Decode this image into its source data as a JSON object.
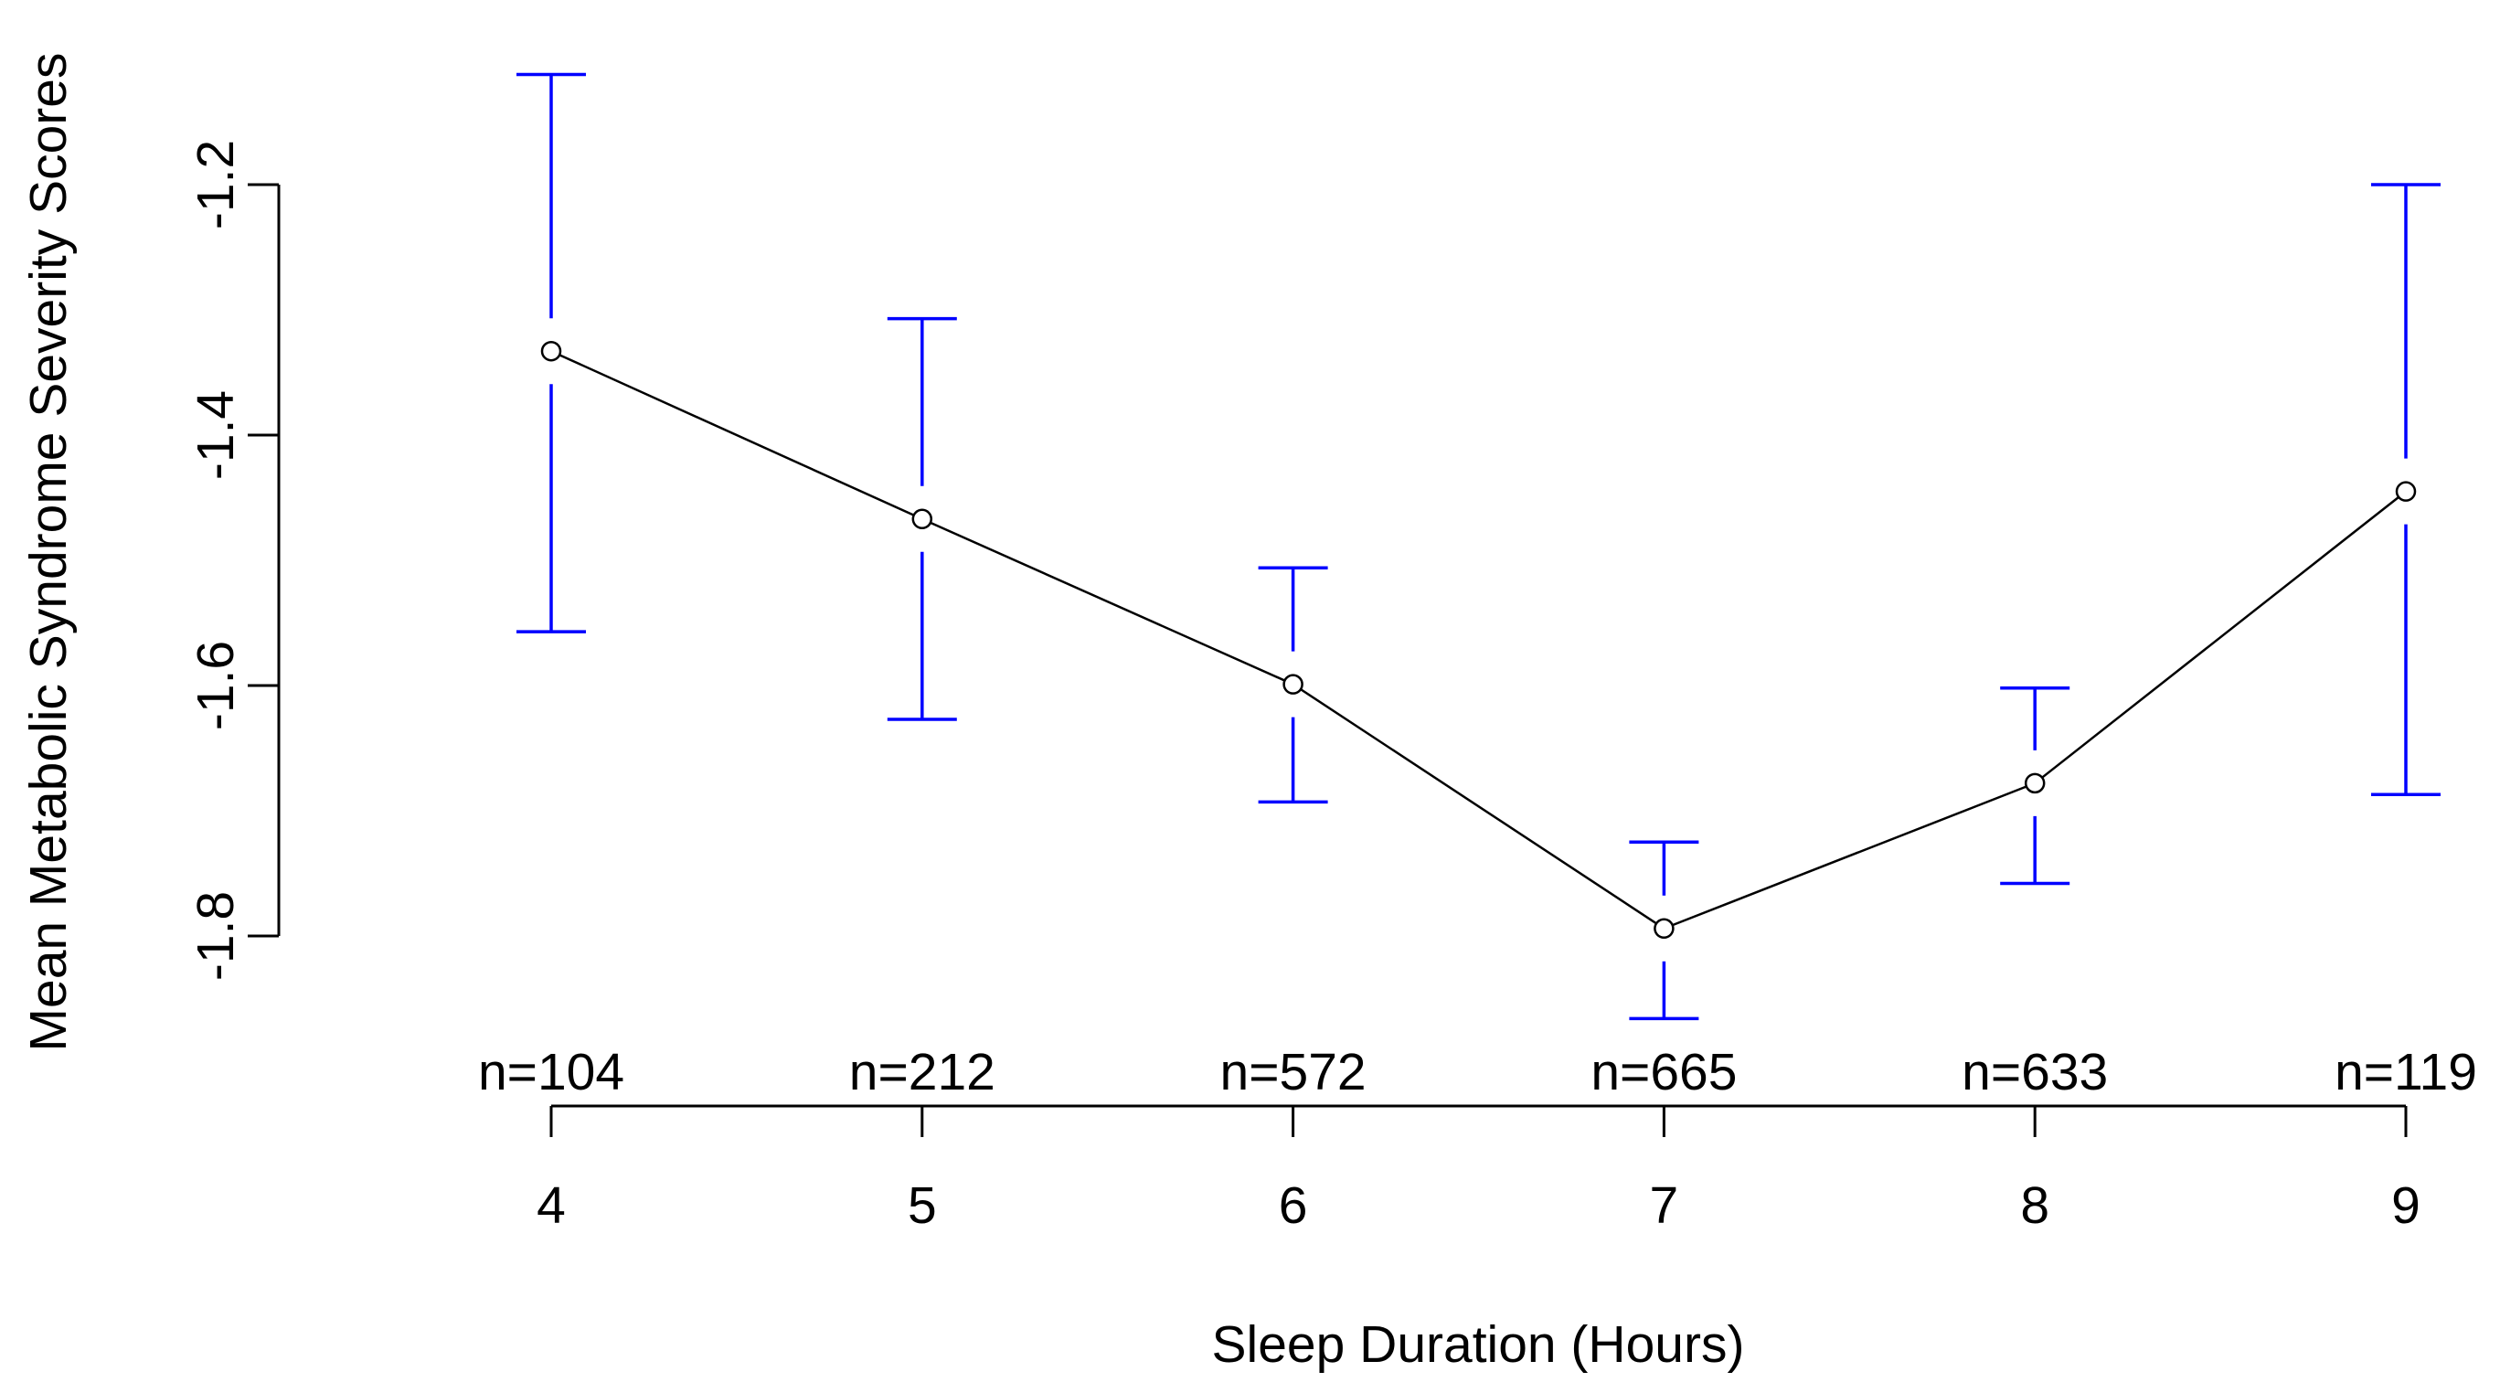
{
  "chart_data": {
    "type": "line",
    "title": "",
    "xlabel": "Sleep Duration (Hours)",
    "ylabel": "Mean Metabolic Syndrome Severity Scores",
    "x": [
      4,
      5,
      6,
      7,
      8,
      9
    ],
    "x_tick_labels": [
      "4",
      "5",
      "6",
      "7",
      "8",
      "9"
    ],
    "n_labels": [
      "n=104",
      "n=212",
      "n=572",
      "n=665",
      "n=633",
      "n=119"
    ],
    "series": [
      {
        "values": [
          -1.333,
          -1.467,
          -1.599,
          -1.794,
          -1.678,
          -1.445
        ],
        "ci_upper": [
          -1.112,
          -1.307,
          -1.506,
          -1.725,
          -1.602,
          -1.2
        ],
        "ci_lower": [
          -1.557,
          -1.627,
          -1.693,
          -1.866,
          -1.758,
          -1.687
        ]
      }
    ],
    "y_ticks": [
      -1.8,
      -1.6,
      -1.4,
      -1.2
    ],
    "y_tick_labels": [
      "-1.8",
      "-1.6",
      "-1.4",
      "-1.2"
    ],
    "ylim": [
      -1.8,
      -1.2
    ],
    "xlim": [
      4,
      9
    ],
    "grid": false,
    "colors": {
      "line": "#000000",
      "error_bars": "#0000ff",
      "axes": "#000000"
    }
  }
}
